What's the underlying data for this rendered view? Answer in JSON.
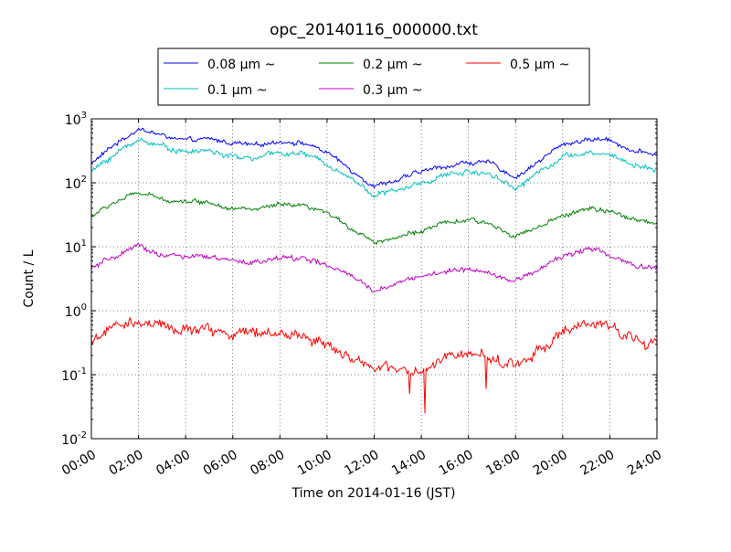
{
  "chart_data": {
    "type": "line",
    "title": "opc_20140116_000000.txt",
    "xlabel": "Time on 2014-01-16 (JST)",
    "ylabel": "Count / L",
    "yscale": "log",
    "xlim": [
      "2014-01-16 00:00",
      "2014-01-17 00:00"
    ],
    "ylim": [
      0.01,
      1000
    ],
    "grid": true,
    "legend_position": "top-center, above plot",
    "x_tick_labels": [
      "00:00",
      "02:00",
      "04:00",
      "06:00",
      "08:00",
      "10:00",
      "12:00",
      "14:00",
      "16:00",
      "18:00",
      "20:00",
      "22:00",
      "24:00"
    ],
    "y_tick_labels": [
      {
        "base": "10",
        "exp": "-2"
      },
      {
        "base": "10",
        "exp": "-1"
      },
      {
        "base": "10",
        "exp": "0"
      },
      {
        "base": "10",
        "exp": "1"
      },
      {
        "base": "10",
        "exp": "2"
      },
      {
        "base": "10",
        "exp": "3"
      }
    ],
    "x_hours": [
      0,
      1,
      2,
      3,
      4,
      5,
      6,
      7,
      8,
      9,
      10,
      11,
      12,
      13,
      14,
      15,
      16,
      17,
      18,
      19,
      20,
      21,
      22,
      23,
      24
    ],
    "series": [
      {
        "name": "0.08 μm ~",
        "color": "#0000ff",
        "noise": 0.05,
        "values": [
          200,
          400,
          700,
          550,
          450,
          480,
          420,
          380,
          450,
          420,
          300,
          160,
          90,
          110,
          150,
          180,
          210,
          200,
          120,
          220,
          400,
          470,
          480,
          310,
          280
        ]
      },
      {
        "name": "0.1 μm ~",
        "color": "#00bfbf",
        "noise": 0.06,
        "values": [
          150,
          280,
          480,
          380,
          300,
          320,
          250,
          240,
          300,
          280,
          200,
          120,
          65,
          75,
          100,
          130,
          150,
          140,
          80,
          150,
          260,
          280,
          280,
          190,
          160
        ]
      },
      {
        "name": "0.2 μm ~",
        "color": "#008000",
        "noise": 0.05,
        "values": [
          30,
          50,
          70,
          55,
          52,
          50,
          40,
          38,
          45,
          42,
          33,
          20,
          12,
          14,
          18,
          23,
          26,
          22,
          15,
          20,
          30,
          40,
          35,
          27,
          24
        ]
      },
      {
        "name": "0.3 μm ~",
        "color": "#bf00bf",
        "noise": 0.06,
        "values": [
          4.5,
          7,
          10,
          7.5,
          7,
          6.8,
          5.8,
          5.8,
          6.5,
          6.8,
          5,
          3.5,
          2,
          2.8,
          3.5,
          4,
          4.5,
          4,
          2.8,
          4.5,
          7,
          9.5,
          7.5,
          5,
          4.5
        ]
      },
      {
        "name": "0.5 μm ~",
        "color": "#ff0000",
        "noise": 0.12,
        "values": [
          0.35,
          0.55,
          0.65,
          0.55,
          0.5,
          0.5,
          0.45,
          0.45,
          0.45,
          0.4,
          0.3,
          0.2,
          0.12,
          0.12,
          0.1,
          0.18,
          0.22,
          0.18,
          0.14,
          0.25,
          0.45,
          0.6,
          0.55,
          0.4,
          0.28
        ]
      }
    ],
    "dips": [
      {
        "series": "0.5 μm ~",
        "hour": 13.5,
        "value": 0.05
      },
      {
        "series": "0.5 μm ~",
        "hour": 14.15,
        "value": 0.025
      },
      {
        "series": "0.5 μm ~",
        "hour": 16.75,
        "value": 0.06
      }
    ]
  }
}
